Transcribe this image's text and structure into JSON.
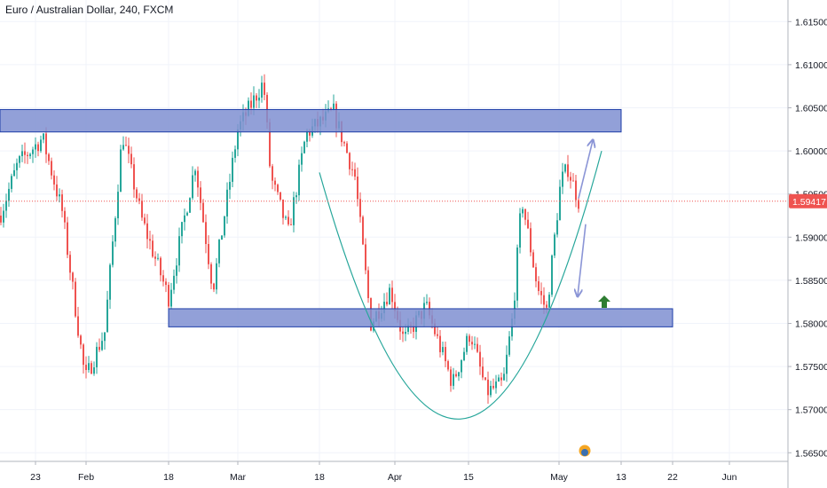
{
  "header": {
    "title": "Euro / Australian Dollar, 240, FXCM"
  },
  "colors": {
    "bull": "#26a69a",
    "bear": "#ef5350",
    "zone_fill": "#7f8fd1",
    "zone_stroke": "#1e3ea8",
    "curve": "#26a69a",
    "arrow": "#8b95d6",
    "price_line": "#ef5350",
    "up_arrow": "#2e7d32",
    "grid": "#f0f3fa"
  },
  "chart_data": {
    "type": "candlestick",
    "symbol": "EURAUD",
    "timeframe": "240",
    "source": "FXCM",
    "x_ticks": [
      "23",
      "Feb",
      "18",
      "Mar",
      "18",
      "Apr",
      "15",
      "May",
      "13",
      "22",
      "Jun"
    ],
    "y_ticks": [
      "1.61500",
      "1.61000",
      "1.60500",
      "1.60000",
      "1.59500",
      "1.59000",
      "1.58500",
      "1.58000",
      "1.57500",
      "1.57000",
      "1.56500"
    ],
    "ylim": [
      1.564,
      1.6175
    ],
    "last_price": "1.59417",
    "path_by_x_tick": [
      {
        "x": "23",
        "close": 1.596
      },
      {
        "x": "Feb",
        "close": 1.578
      },
      {
        "x": "18",
        "close": 1.583
      },
      {
        "x": "Mar",
        "close": 1.603
      },
      {
        "x": "18",
        "close": 1.599
      },
      {
        "x": "Apr",
        "close": 1.579
      },
      {
        "x": "15",
        "close": 1.572
      },
      {
        "x": "May",
        "close": 1.597
      }
    ],
    "resistance_zone": [
      1.6022,
      1.6048
    ],
    "support_zone": [
      1.5796,
      1.5817
    ],
    "rounding_bottom_low": 1.568,
    "grid": true,
    "legend": "none"
  }
}
